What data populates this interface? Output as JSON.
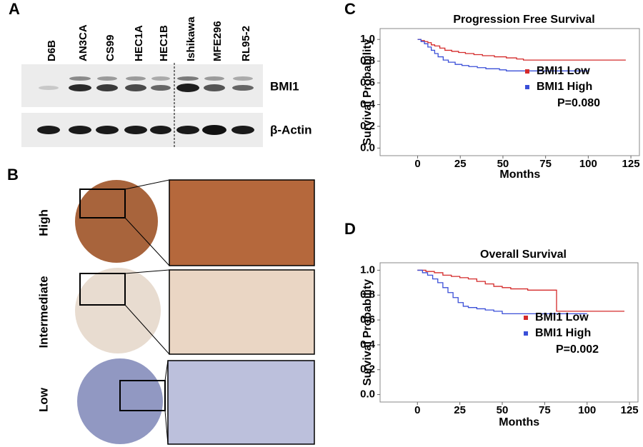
{
  "panel_a": {
    "label": "A",
    "lanes": [
      "D6B",
      "AN3CA",
      "CS99",
      "HEC1A",
      "HEC1B",
      "Ishikawa",
      "MFE296",
      "RL95-2"
    ],
    "blots": [
      "BMI1",
      "β-Actin"
    ]
  },
  "panel_b": {
    "label": "B",
    "rows": [
      "High",
      "Intermediate",
      "Low"
    ]
  },
  "chart_data": [
    {
      "type": "line",
      "panel_label": "C",
      "title": "Progression Free Survival",
      "xlabel": "Months",
      "ylabel": "Survival Probability",
      "xlim": [
        -22,
        130
      ],
      "xticks": [
        0,
        25,
        50,
        75,
        100,
        125
      ],
      "ylim": [
        -0.07,
        1.1
      ],
      "yticks": [
        {
          "value": 0,
          "label": "0.0"
        },
        0.2,
        0.4,
        0.6,
        0.8,
        {
          "value": 1,
          "label": "1.0"
        }
      ],
      "legend": "lower right",
      "annotation": "P=0.080",
      "series": [
        {
          "name": "BMI1 Low",
          "color": "#d42a2a",
          "x": [
            0,
            2,
            4,
            6,
            8,
            10,
            13,
            16,
            20,
            24,
            28,
            33,
            38,
            45,
            52,
            58,
            62,
            122
          ],
          "values": [
            1,
            0.99,
            0.98,
            0.97,
            0.95,
            0.94,
            0.92,
            0.9,
            0.89,
            0.88,
            0.87,
            0.86,
            0.85,
            0.84,
            0.83,
            0.82,
            0.81,
            0.81
          ]
        },
        {
          "name": "BMI1 High",
          "color": "#3a4fd8",
          "x": [
            0,
            2,
            4,
            6,
            8,
            10,
            12,
            15,
            18,
            22,
            26,
            30,
            35,
            40,
            48,
            52,
            100
          ],
          "values": [
            1,
            0.98,
            0.96,
            0.93,
            0.9,
            0.87,
            0.84,
            0.81,
            0.79,
            0.77,
            0.76,
            0.75,
            0.74,
            0.73,
            0.72,
            0.71,
            0.71
          ]
        }
      ]
    },
    {
      "type": "line",
      "panel_label": "D",
      "title": "Overall Survival",
      "xlabel": "Months",
      "ylabel": "Survival Probability",
      "xlim": [
        -22,
        130
      ],
      "xticks": [
        0,
        25,
        50,
        75,
        100,
        125
      ],
      "ylim": [
        -0.06,
        1.06
      ],
      "yticks": [
        {
          "value": 0,
          "label": "0.0"
        },
        0.2,
        0.4,
        0.6,
        0.8,
        {
          "value": 1,
          "label": "1.0"
        }
      ],
      "legend": "lower right",
      "annotation": "P=0.002",
      "series": [
        {
          "name": "BMI1 Low",
          "color": "#d42a2a",
          "x": [
            0,
            5,
            10,
            15,
            20,
            25,
            30,
            35,
            40,
            45,
            50,
            55,
            60,
            65,
            80,
            82,
            122
          ],
          "values": [
            1,
            0.99,
            0.98,
            0.96,
            0.95,
            0.94,
            0.93,
            0.91,
            0.89,
            0.87,
            0.86,
            0.85,
            0.85,
            0.84,
            0.84,
            0.67,
            0.67
          ]
        },
        {
          "name": "BMI1 High",
          "color": "#3a4fd8",
          "x": [
            0,
            3,
            6,
            9,
            12,
            15,
            18,
            21,
            24,
            27,
            30,
            35,
            40,
            45,
            50,
            55,
            100
          ],
          "values": [
            1,
            0.98,
            0.96,
            0.93,
            0.9,
            0.86,
            0.82,
            0.78,
            0.74,
            0.71,
            0.7,
            0.69,
            0.68,
            0.67,
            0.65,
            0.65,
            0.65
          ]
        }
      ]
    }
  ]
}
